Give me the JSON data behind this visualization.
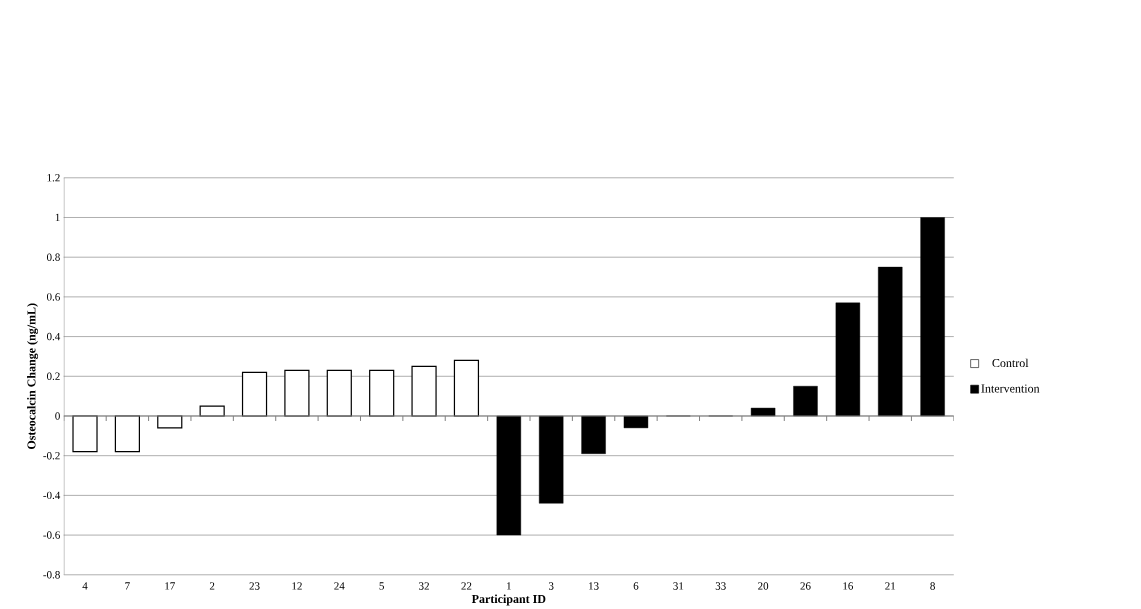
{
  "chart_data": {
    "type": "bar",
    "xlabel": "Participant  ID",
    "ylabel": "Osteocalcin Change (ng/mL)",
    "categories": [
      "4",
      "7",
      "17",
      "2",
      "23",
      "12",
      "24",
      "5",
      "32",
      "22",
      "1",
      "3",
      "13",
      "6",
      "31",
      "33",
      "20",
      "26",
      "16",
      "21",
      "8"
    ],
    "series": [
      {
        "name": "Control",
        "color": "#ffffff",
        "values": [
          -0.18,
          -0.18,
          -0.06,
          0.05,
          0.22,
          0.23,
          0.23,
          0.23,
          0.25,
          0.28,
          null,
          null,
          null,
          null,
          null,
          null,
          null,
          null,
          null,
          null,
          null
        ]
      },
      {
        "name": "Intervention",
        "color": "#000000",
        "values": [
          null,
          null,
          null,
          null,
          null,
          null,
          null,
          null,
          null,
          null,
          -0.6,
          -0.44,
          -0.19,
          -0.06,
          0,
          0,
          0.04,
          0.15,
          0.57,
          0.75,
          1.0
        ]
      }
    ],
    "ylim": [
      -0.8,
      1.2
    ],
    "yticks": [
      -0.8,
      -0.6,
      -0.4,
      -0.2,
      0,
      0.2,
      0.4,
      0.6,
      0.8,
      1,
      1.2
    ],
    "grid": "y",
    "legend": "right"
  }
}
